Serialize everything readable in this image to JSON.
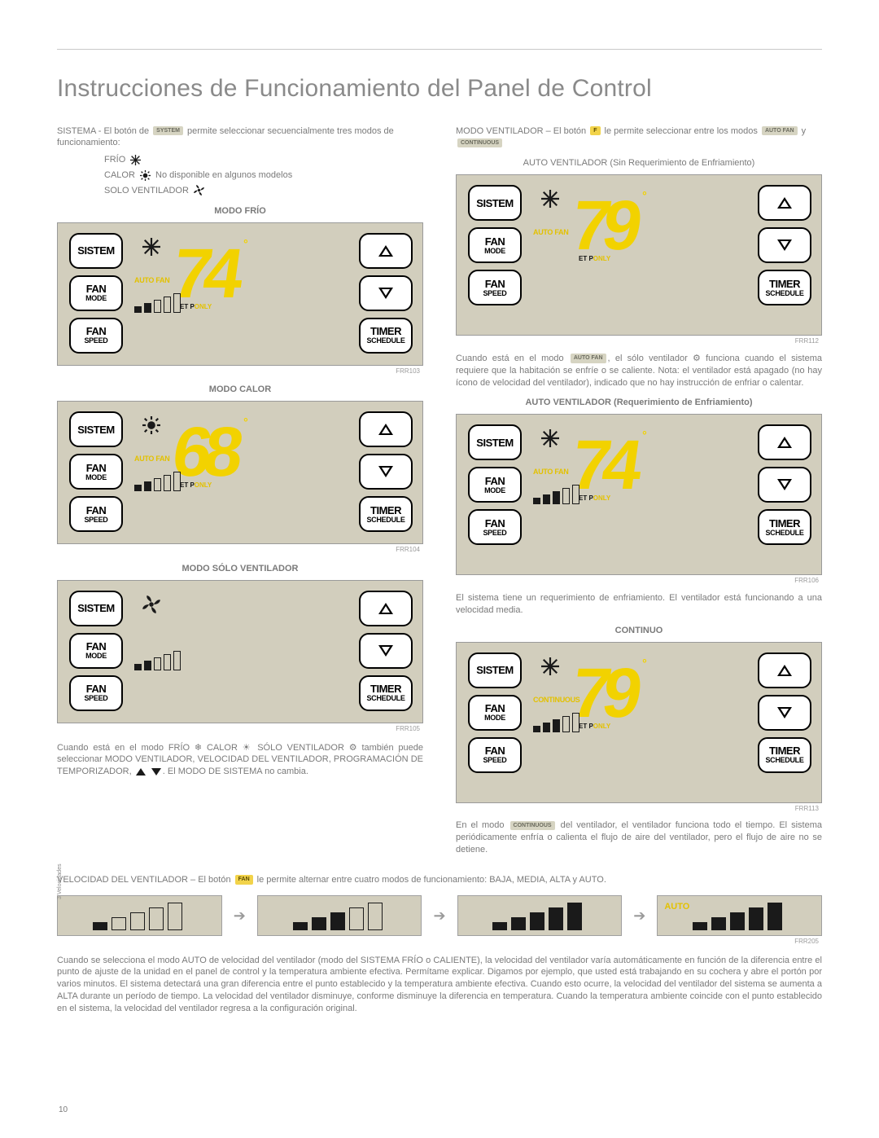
{
  "page_number": "10",
  "title": "Instrucciones de Funcionamiento del Panel de Control",
  "colors": {
    "panel_bg": "#d2cebd",
    "lcd_yellow": "#f2d200",
    "lcd_amber": "#e3c100",
    "body_text": "#7a7a7a",
    "black": "#1a1a1a"
  },
  "left": {
    "intro_pre": "SISTEMA - El botón de ",
    "intro_tag": "SYSTEM",
    "intro_post": " permite seleccionar secuencialmente tres modos de funcionamiento:",
    "modes": {
      "frio_label": "FRÍO",
      "calor_label": "CALOR",
      "calor_note": "No disponible en algunos modelos",
      "solo_label": "SOLO VENTILADOR"
    },
    "panel_frio": {
      "caption": "MODO FRÍO",
      "mode_text": "AUTO FAN",
      "temp": "74",
      "etp": "ET P",
      "ref": "FRR103",
      "icon": "snowflake"
    },
    "panel_calor": {
      "caption": "MODO CALOR",
      "mode_text": "AUTO FAN",
      "temp": "68",
      "etp": "ET P",
      "ref": "FRR104",
      "icon": "sun"
    },
    "panel_solo": {
      "caption": "MODO SÓLO VENTILADOR",
      "mode_text": "",
      "temp": "",
      "etp": "",
      "ref": "FRR105",
      "icon": "fan"
    },
    "paragraph_after": "Cuando está en el modo FRÍO  ❄  CALOR  ☀  SÓLO VENTILADOR  ⚙  también puede seleccionar MODO VENTILADOR, VELOCIDAD DEL VENTILADOR, PROGRAMACIÓN DE TEMPORIZADOR, ",
    "paragraph_after_tail": ". El MODO DE SISTEMA no cambia."
  },
  "right": {
    "intro_pre": "MODO VENTILADOR – El botón ",
    "intro_tag": "F",
    "intro_post": " le permite seleccionar entre los modos ",
    "intro_tag2": "AUTO FAN",
    "intro_mid": " y ",
    "intro_tag3": "CONTINUOUS",
    "panel_auto_noreq": {
      "caption": "AUTO VENTILADOR (Sin Requerimiento de Enfriamiento)",
      "mode_text": "AUTO FAN",
      "temp": "79",
      "etp": "ET P",
      "ref": "FRR112",
      "icon": "snowflake"
    },
    "para1_pre": "Cuando está en el modo ",
    "para1_tag": "AUTO FAN",
    "para1_post": ", el sólo ventilador  ⚙  funciona cuando el sistema requiere que la habitación se enfríe o se caliente. Nota: el ventilador está apagado (no hay ícono de velocidad del ventilador), indicado que no hay instrucción de enfriar o calentar.",
    "panel_auto_req": {
      "caption": "AUTO VENTILADOR (Requerimiento de Enfriamiento)",
      "mode_text": "AUTO FAN",
      "temp": "74",
      "etp": "ET P",
      "ref": "FRR106",
      "icon": "snowflake"
    },
    "para2": "El sistema tiene un requerimiento de enfriamiento. El ventilador está funcionando a una velocidad media.",
    "panel_cont": {
      "caption": "CONTINUO",
      "mode_text": "CONTINUOUS",
      "temp": "79",
      "etp": "ET P",
      "ref": "FRR113",
      "icon": "snowflake"
    },
    "para3_pre": "En el modo ",
    "para3_tag": "CONTINUOUS",
    "para3_post": " del ventilador, el ventilador funciona todo el tiempo. El sistema periódicamente enfría o calienta el flujo de aire del ventilador, pero el flujo de aire no se detiene."
  },
  "buttons": {
    "sistem": "SISTEM",
    "fan": "FAN",
    "mode": "MODE",
    "speed": "SPEED",
    "timer": "TIMER",
    "schedule": "SCHEDULE"
  },
  "fanspeed": {
    "intro_pre": "VELOCIDAD DEL VENTILADOR – El botón ",
    "intro_tag": "FAN",
    "intro_post": " le permite alternar entre cuatro modos de funcionamiento: BAJA, MEDIA, ALTA y AUTO.",
    "side_label": "3 Velocidades",
    "auto_label": "AUTO",
    "ref": "FRR205",
    "bars": [
      {
        "heights": [
          10,
          16,
          22,
          28,
          34
        ],
        "on": [
          1,
          0,
          0,
          0,
          0
        ]
      },
      {
        "heights": [
          10,
          16,
          22,
          28,
          34
        ],
        "on": [
          1,
          1,
          1,
          0,
          0
        ]
      },
      {
        "heights": [
          10,
          16,
          22,
          28,
          34
        ],
        "on": [
          1,
          1,
          1,
          1,
          1
        ]
      },
      {
        "heights": [
          10,
          16,
          22,
          28,
          34
        ],
        "on": [
          1,
          1,
          1,
          1,
          1
        ]
      }
    ]
  },
  "bottom_para": "Cuando se selecciona el modo AUTO de velocidad del ventilador (modo del SISTEMA FRÍO o CALIENTE), la velocidad del ventilador varía automáticamente en función de la diferencia entre el punto de ajuste de la unidad en el panel de control y la temperatura ambiente efectiva. Permítame explicar. Digamos por ejemplo, que usted está trabajando en su cochera y abre el portón por varios minutos. El sistema detectará una gran diferencia entre el punto establecido y la temperatura ambiente efectiva. Cuando esto ocurre, la velocidad del ventilador del sistema se aumenta a ALTA durante un período de tiempo. La velocidad del ventilador disminuye, conforme disminuye la diferencia en temperatura. Cuando la temperatura ambiente coincide con el punto establecido en el sistema, la velocidad del ventilador regresa a la configuración original."
}
